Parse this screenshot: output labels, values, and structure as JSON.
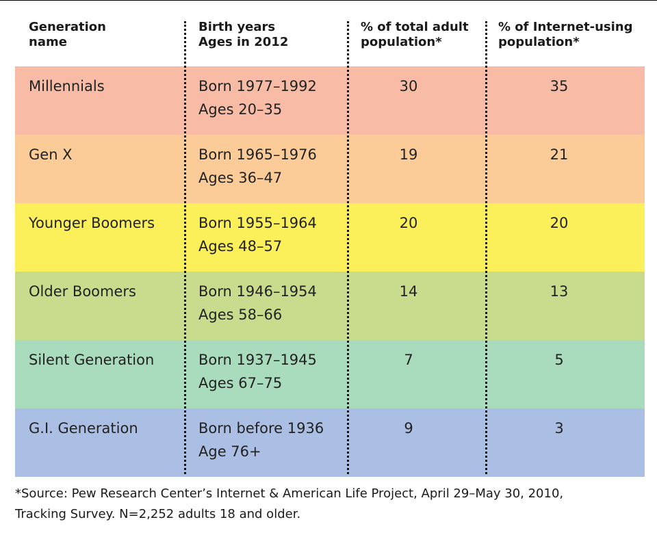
{
  "table": {
    "header": [
      [
        "Generation",
        "name"
      ],
      [
        "Birth years",
        "Ages in 2012"
      ],
      [
        "% of total adult",
        "population*"
      ],
      [
        "% of Internet-using",
        "population*"
      ]
    ],
    "rows": [
      {
        "name": "Millennials",
        "born": "Born 1977–1992",
        "ages": "Ages 20–35",
        "adult": 30,
        "internet": 35
      },
      {
        "name": "Gen X",
        "born": "Born 1965–1976",
        "ages": "Ages 36–47",
        "adult": 19,
        "internet": 21
      },
      {
        "name": "Younger Boomers",
        "born": "Born 1955–1964",
        "ages": "Ages 48–57",
        "adult": 20,
        "internet": 20
      },
      {
        "name": "Older Boomers",
        "born": "Born 1946–1954",
        "ages": "Ages 58–66",
        "adult": 14,
        "internet": 13
      },
      {
        "name": "Silent Generation",
        "born": "Born 1937–1945",
        "ages": "Ages 67–75",
        "adult": 7,
        "internet": 5
      },
      {
        "name": "G.I. Generation",
        "born": "Born before 1936",
        "ages": "Age 76+",
        "adult": 9,
        "internet": 3
      }
    ]
  },
  "footnote": [
    "*Source: Pew Research Center’s Internet & American Life Project, April 29–May 30, 2010,",
    "Tracking Survey. N=2,252 adults 18 and older."
  ]
}
